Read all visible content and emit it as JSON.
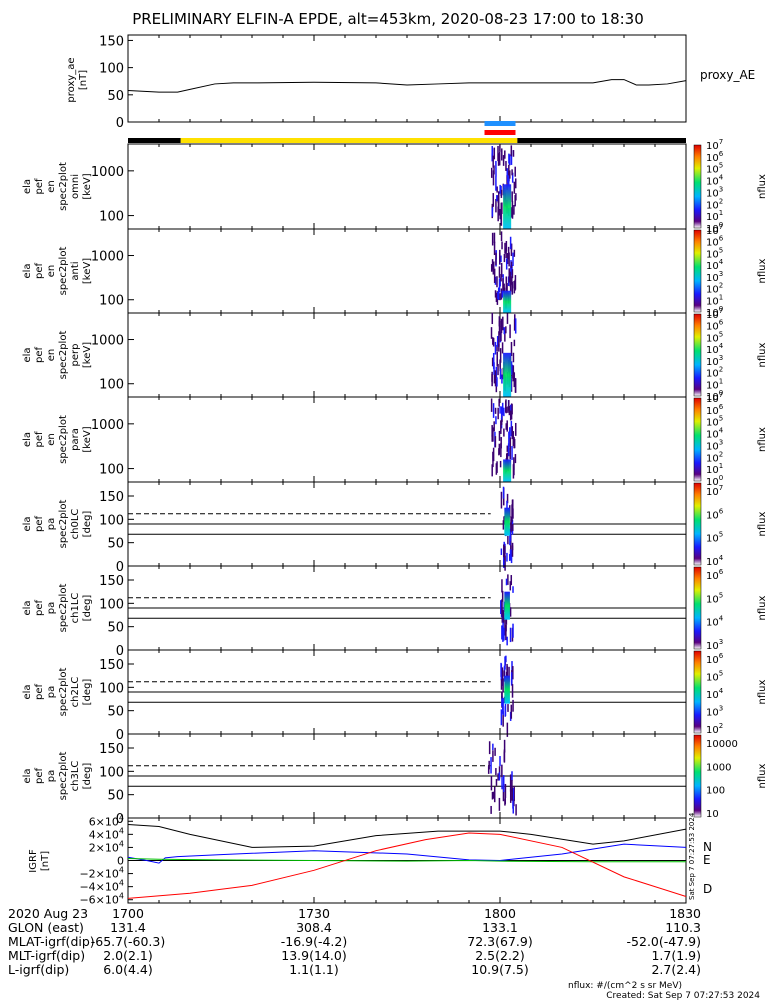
{
  "title": "PRELIMINARY ELFIN-A EPDE, alt=453km, 2020-08-23 17:00 to 18:30",
  "chart_data": [
    {
      "type": "line",
      "panel": "proxy_ae",
      "ylabel": [
        "proxy_ae",
        "[nT]"
      ],
      "legend": "proxy_AE",
      "ylim": [
        0,
        160
      ],
      "yticks": [
        "150",
        "100",
        "50",
        "0"
      ],
      "x_minutes": [
        0,
        5,
        8,
        10,
        14,
        17,
        21,
        30,
        40,
        45,
        50,
        55,
        60,
        65,
        70,
        75,
        78,
        80,
        82,
        84,
        87,
        90
      ],
      "values": [
        58,
        55,
        55,
        60,
        70,
        72,
        72,
        73,
        72,
        68,
        70,
        72,
        72,
        72,
        72,
        72,
        78,
        78,
        68,
        68,
        70,
        76
      ]
    },
    {
      "type": "heatmap",
      "panel": "omni",
      "ylabel": [
        "ela",
        "pef",
        "en",
        "spec2plot",
        "omni",
        "[keV]"
      ],
      "ylog": true,
      "yticks": [
        "1000",
        "100"
      ],
      "zlabel": "nflux",
      "zticks": [
        "10^7",
        "10^6",
        "10^5",
        "10^4",
        "10^3",
        "10^2",
        "10^1",
        "10^0"
      ],
      "z_range_log": [
        0,
        7
      ],
      "active_interval_minutes": [
        58.5,
        62.5
      ],
      "peak_interval_minutes": [
        60.5,
        61.8
      ]
    },
    {
      "type": "heatmap",
      "panel": "anti",
      "ylabel": [
        "ela",
        "pef",
        "en",
        "spec2plot",
        "anti",
        "[keV]"
      ],
      "ylog": true,
      "yticks": [
        "1000",
        "100"
      ],
      "zlabel": "nflux",
      "zticks": [
        "10^7",
        "10^6",
        "10^5",
        "10^4",
        "10^3",
        "10^2",
        "10^1",
        "10^0"
      ],
      "z_range_log": [
        0,
        7
      ],
      "active_interval_minutes": [
        58.5,
        62.5
      ],
      "peak_interval_minutes": [
        60.5,
        61.8
      ]
    },
    {
      "type": "heatmap",
      "panel": "perp",
      "ylabel": [
        "ela",
        "pef",
        "en",
        "spec2plot",
        "perp",
        "[keV]"
      ],
      "ylog": true,
      "yticks": [
        "1000",
        "100"
      ],
      "zlabel": "nflux",
      "zticks": [
        "10^7",
        "10^6",
        "10^5",
        "10^4",
        "10^3",
        "10^2",
        "10^1",
        "10^0"
      ],
      "z_range_log": [
        0,
        7
      ],
      "active_interval_minutes": [
        58.5,
        62.5
      ],
      "peak_interval_minutes": [
        60.5,
        61.8
      ]
    },
    {
      "type": "heatmap",
      "panel": "para",
      "ylabel": [
        "ela",
        "pef",
        "en",
        "spec2plot",
        "para",
        "[keV]"
      ],
      "ylog": true,
      "yticks": [
        "1000",
        "100"
      ],
      "zlabel": "nflux",
      "zticks": [
        "10^7",
        "10^6",
        "10^5",
        "10^4",
        "10^3",
        "10^2",
        "10^1",
        "10^0"
      ],
      "z_range_log": [
        0,
        7
      ],
      "active_interval_minutes": [
        58.5,
        62.5
      ],
      "peak_interval_minutes": [
        60.5,
        61.8
      ]
    },
    {
      "type": "heatmap",
      "panel": "ch0LC",
      "ylabel": [
        "ela",
        "pef",
        "pa",
        "spec2plot",
        "ch0LC",
        "[deg]"
      ],
      "ylim": [
        0,
        180
      ],
      "yticks": [
        "150",
        "100",
        "50",
        "0"
      ],
      "zlabel": "nflux",
      "zticks": [
        "10^7",
        "10^6",
        "10^5",
        "10^4"
      ],
      "active_interval_minutes": [
        60.0,
        62.0
      ],
      "loss_cone_deg": 112,
      "ref_lines_deg": [
        90,
        68
      ]
    },
    {
      "type": "heatmap",
      "panel": "ch1LC",
      "ylabel": [
        "ela",
        "pef",
        "pa",
        "spec2plot",
        "ch1LC",
        "[deg]"
      ],
      "ylim": [
        0,
        180
      ],
      "yticks": [
        "150",
        "100",
        "50",
        "0"
      ],
      "zlabel": "nflux",
      "zticks": [
        "10^6",
        "10^5",
        "10^4",
        "10^3"
      ],
      "active_interval_minutes": [
        60.0,
        62.0
      ],
      "loss_cone_deg": 112,
      "ref_lines_deg": [
        90,
        68
      ]
    },
    {
      "type": "heatmap",
      "panel": "ch2LC",
      "ylabel": [
        "ela",
        "pef",
        "pa",
        "spec2plot",
        "ch2LC",
        "[deg]"
      ],
      "ylim": [
        0,
        180
      ],
      "yticks": [
        "150",
        "100",
        "50",
        "0"
      ],
      "zlabel": "nflux",
      "zticks": [
        "10^6",
        "10^5",
        "10^4",
        "10^3",
        "10^2"
      ],
      "active_interval_minutes": [
        60.0,
        62.0
      ],
      "loss_cone_deg": 112,
      "ref_lines_deg": [
        90,
        68
      ]
    },
    {
      "type": "heatmap",
      "panel": "ch3LC",
      "ylabel": [
        "ela",
        "pef",
        "pa",
        "spec2plot",
        "ch3LC",
        "[deg]"
      ],
      "ylim": [
        0,
        180
      ],
      "yticks": [
        "150",
        "100",
        "50",
        "0"
      ],
      "zlabel": "nflux",
      "zticks": [
        "10000",
        "1000",
        "100",
        "10"
      ],
      "active_interval_minutes": [
        58.0,
        62.5
      ],
      "loss_cone_deg": 112,
      "ref_lines_deg": [
        90,
        68
      ]
    },
    {
      "type": "line",
      "panel": "IGRF",
      "ylabel": [
        "IGRF",
        "[nT]"
      ],
      "ylim": [
        -65000,
        65000
      ],
      "yticks": [
        "6×10^4",
        "4×10^4",
        "2×10^4",
        "0",
        "−2×10^4",
        "−4×10^4",
        "−6×10^4"
      ],
      "series": [
        {
          "name": "N",
          "color": "#0000ff",
          "x_minutes": [
            0,
            3,
            5,
            6,
            8,
            15,
            30,
            45,
            55,
            60,
            70,
            80,
            90
          ],
          "values": [
            5000,
            0,
            -4000,
            4000,
            6000,
            9000,
            15000,
            10000,
            1000,
            0,
            10000,
            25000,
            20000
          ]
        },
        {
          "name": "E",
          "color": "#00c000",
          "x_minutes": [
            0,
            5,
            15,
            30,
            45,
            55,
            60,
            75,
            90
          ],
          "values": [
            3000,
            2000,
            1000,
            0,
            -1000,
            0,
            -1000,
            -2000,
            -2000
          ]
        },
        {
          "name": "D",
          "color": "#ff0000",
          "x_minutes": [
            0,
            10,
            20,
            30,
            40,
            48,
            55,
            60,
            70,
            80,
            90
          ],
          "values": [
            -58000,
            -50000,
            -38000,
            -15000,
            15000,
            32000,
            42000,
            40000,
            20000,
            -25000,
            -55000
          ]
        },
        {
          "name": "",
          "color": "#000000",
          "x_minutes": [
            0,
            5,
            10,
            20,
            30,
            40,
            50,
            55,
            60,
            65,
            75,
            80,
            90
          ],
          "values": [
            55000,
            52000,
            40000,
            20000,
            22000,
            38000,
            45000,
            45000,
            45000,
            40000,
            25000,
            30000,
            48000
          ]
        }
      ]
    }
  ],
  "ticks": {
    "labels": [
      "2020 Aug 23",
      "GLON (east)",
      "MLAT-igrf(dip)",
      "MLT-igrf(dip)",
      "L-igrf(dip)"
    ],
    "columns": [
      {
        "time": "1700",
        "glon": "131.4",
        "mlat": "-65.7(-60.3)",
        "mlt": "2.0(2.1)",
        "l": "6.0(4.4)"
      },
      {
        "time": "1730",
        "glon": "308.4",
        "mlat": "-16.9(-4.2)",
        "mlt": "13.9(14.0)",
        "l": "1.1(1.1)"
      },
      {
        "time": "1800",
        "glon": "133.1",
        "mlat": "72.3(67.9)",
        "mlt": "2.5(2.2)",
        "l": "10.9(7.5)"
      },
      {
        "time": "1830",
        "glon": "110.3",
        "mlat": "-52.0(-47.9)",
        "mlt": "1.7(1.9)",
        "l": "2.7(2.4)"
      }
    ]
  },
  "bars": {
    "day_night": [
      {
        "from": 0,
        "to": 8.5,
        "color": "#000000"
      },
      {
        "from": 8.5,
        "to": 62.8,
        "color": "#ffe100"
      },
      {
        "from": 62.8,
        "to": 90,
        "color": "#000000"
      }
    ],
    "science_zones": [
      {
        "from": 57.5,
        "to": 62.5,
        "color": "#1e90ff"
      },
      {
        "from": 57.5,
        "to": 62.5,
        "color": "#ff0000"
      }
    ]
  },
  "footer": {
    "units": "nflux: #/(cm^2 s sr MeV)",
    "created": "Created: Sat Sep  7 07:27:53 2024",
    "side_stamp": "Sat Sep  7 07:27:53 2024"
  },
  "colors": {
    "axis": "#000000",
    "dashed_line": "#000000"
  }
}
